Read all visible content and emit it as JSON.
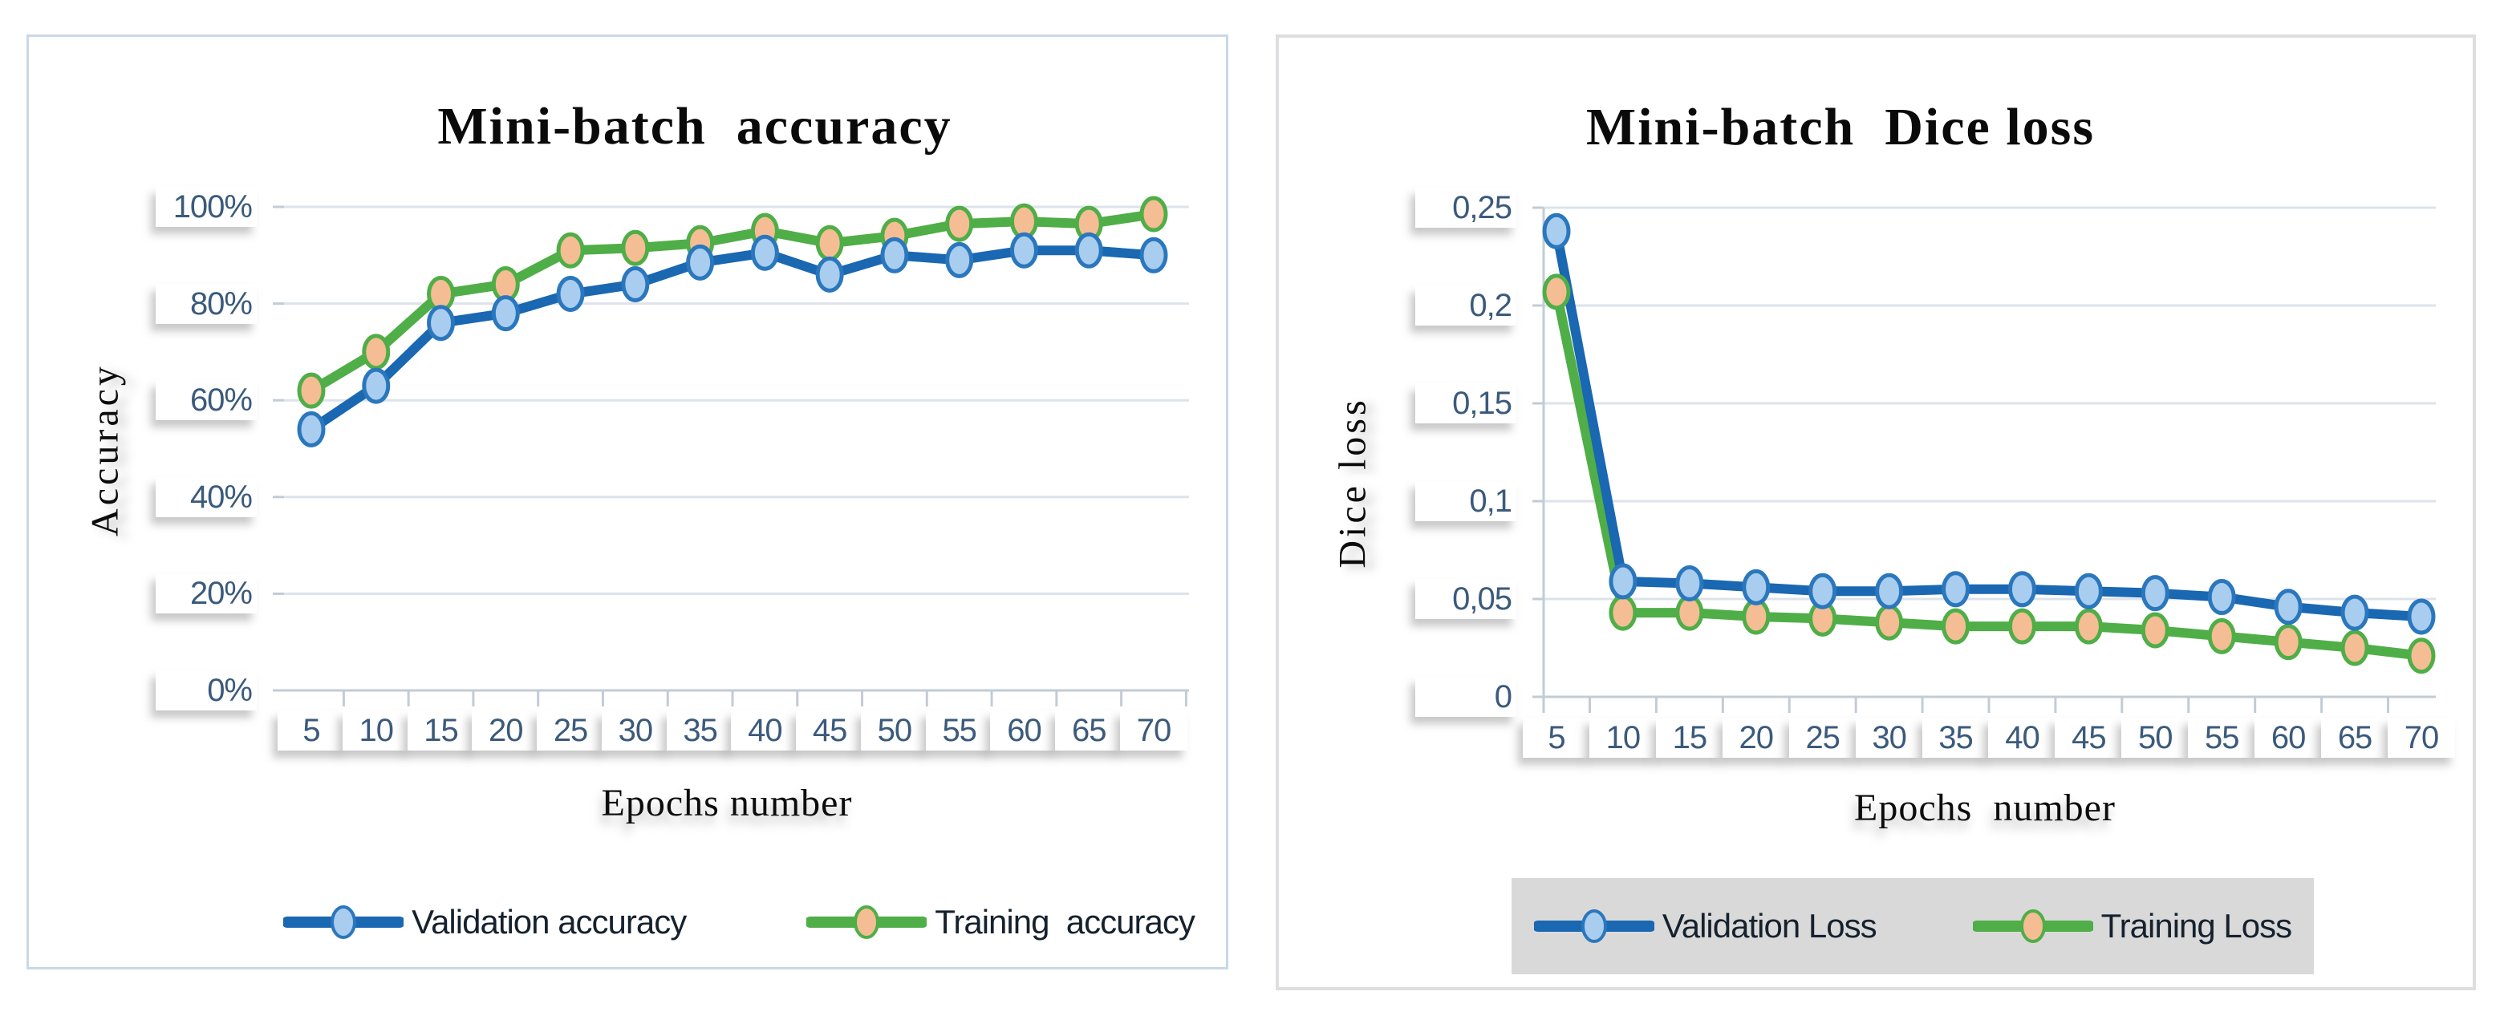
{
  "styles": {
    "blue_line": "#1a67b2",
    "blue_marker_fill": "#a9cdef",
    "blue_marker_stroke": "#2b77bd",
    "green_line": "#4fae47",
    "orange_marker_fill": "#f5bd94",
    "orange_marker_stroke": "#4fae47",
    "gridline": "#dde3eb",
    "axis_line": "#c2ccd6",
    "tick_text": "#3b5a7c",
    "right_legend_bg": "#d9d9d9",
    "left_panel_border": "#c9d8e7",
    "right_panel_border": "#dedee0"
  },
  "chart_data": [
    {
      "type": "line",
      "title": "Mini-batch  accuracy",
      "xlabel": "Epochs number",
      "ylabel": "Accuracy",
      "x": [
        5,
        10,
        15,
        20,
        25,
        30,
        35,
        40,
        45,
        50,
        55,
        60,
        65,
        70
      ],
      "x_tick_labels": [
        "5",
        "10",
        "15",
        "20",
        "25",
        "30",
        "35",
        "40",
        "45",
        "50",
        "55",
        "60",
        "65",
        "70"
      ],
      "y_tick_labels": [
        "0%",
        "20%",
        "40%",
        "60%",
        "80%",
        "100%"
      ],
      "ylim": [
        0,
        100
      ],
      "grid": true,
      "legend_position": "bottom",
      "legend_bg": null,
      "series": [
        {
          "name": "Validation accuracy",
          "line_color": "#1a67b2",
          "marker_fill": "#a9cdef",
          "marker_stroke": "#2b77bd",
          "values": [
            54,
            63,
            76,
            78,
            82,
            84,
            88.5,
            90.5,
            86,
            90,
            89,
            91,
            91,
            90
          ]
        },
        {
          "name": "Training  accuracy",
          "line_color": "#4fae47",
          "marker_fill": "#f5bd94",
          "marker_stroke": "#4fae47",
          "values": [
            62,
            70,
            82,
            84,
            91,
            91.5,
            92.5,
            95,
            92.5,
            94,
            96.5,
            97,
            96.5,
            98.5
          ]
        }
      ]
    },
    {
      "type": "line",
      "title": "Mini-batch  Dice loss",
      "xlabel": "Epochs  number",
      "ylabel": "Dice loss",
      "x": [
        5,
        10,
        15,
        20,
        25,
        30,
        35,
        40,
        45,
        50,
        55,
        60,
        65,
        70
      ],
      "x_tick_labels": [
        "5",
        "10",
        "15",
        "20",
        "25",
        "30",
        "35",
        "40",
        "45",
        "50",
        "55",
        "60",
        "65",
        "70"
      ],
      "y_tick_labels": [
        "0",
        "0,05",
        "0,1",
        "0,15",
        "0,2",
        "0,25"
      ],
      "ylim": [
        0,
        0.25
      ],
      "grid": true,
      "legend_position": "bottom",
      "legend_bg": "#d9d9d9",
      "series": [
        {
          "name": "Validation Loss",
          "line_color": "#1a67b2",
          "marker_fill": "#a9cdef",
          "marker_stroke": "#2b77bd",
          "values": [
            0.238,
            0.059,
            0.058,
            0.056,
            0.054,
            0.054,
            0.055,
            0.055,
            0.054,
            0.053,
            0.051,
            0.046,
            0.043,
            0.041
          ]
        },
        {
          "name": "Training Loss",
          "line_color": "#4fae47",
          "marker_fill": "#f5bd94",
          "marker_stroke": "#4fae47",
          "values": [
            0.207,
            0.043,
            0.043,
            0.041,
            0.04,
            0.038,
            0.036,
            0.036,
            0.036,
            0.034,
            0.031,
            0.028,
            0.025,
            0.021
          ]
        }
      ]
    }
  ]
}
